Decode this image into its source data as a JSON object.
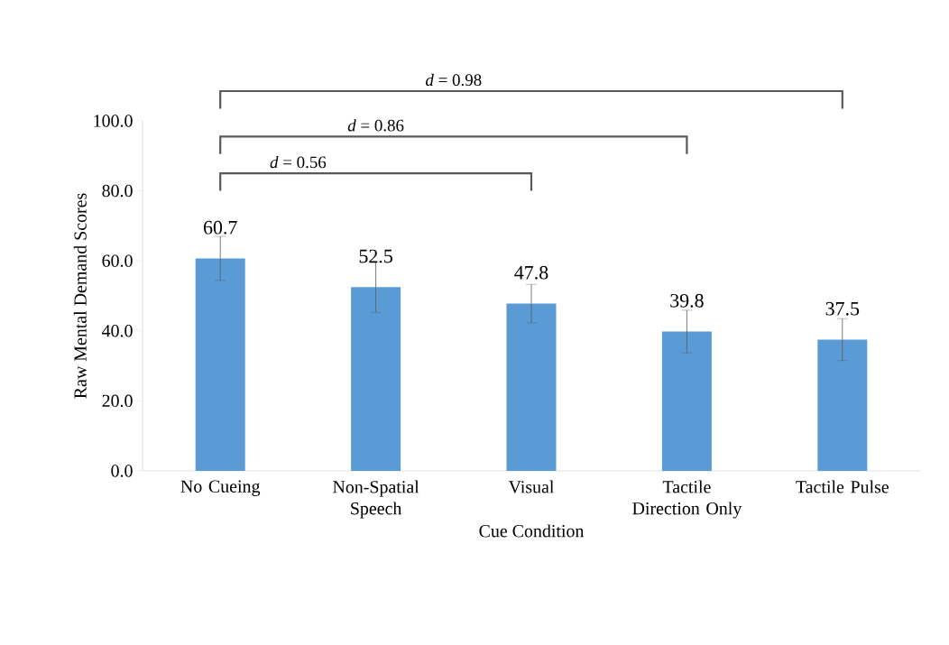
{
  "chart_data": {
    "type": "bar",
    "xlabel": "Cue Condition",
    "ylabel": "Raw Mental Demand Scores",
    "categories": [
      "No Cueing",
      "Non-Spatial Speech",
      "Visual",
      "Tactile Direction Only",
      "Tactile Pulse"
    ],
    "values": [
      60.7,
      52.5,
      47.8,
      39.8,
      37.5
    ],
    "errors": [
      6.3,
      7.2,
      5.5,
      6.1,
      6.0
    ],
    "color": "#5b9bd5",
    "ylim": [
      0,
      100
    ],
    "yticks": [
      {
        "value": 0,
        "label": "0.0"
      },
      {
        "value": 20,
        "label": "20.0"
      },
      {
        "value": 40,
        "label": "40.0"
      },
      {
        "value": 60,
        "label": "60.0"
      },
      {
        "value": 80,
        "label": "80.0"
      },
      {
        "value": 100,
        "label": "100.0"
      }
    ],
    "data_labels": true,
    "grid": false,
    "annotations": [
      "*d* = 0.56",
      "*d* = 0.86",
      "*d* = 0.98"
    ]
  }
}
